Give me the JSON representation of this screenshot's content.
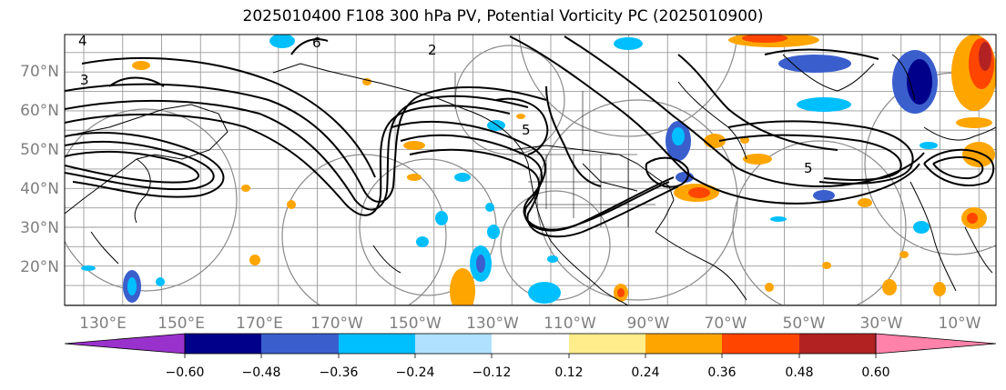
{
  "title": "2025010400 F108 300 hPa PV, Potential Vorticity PC (2025010900)",
  "map": {
    "lat_labels": [
      "70°N",
      "60°N",
      "50°N",
      "40°N",
      "30°N",
      "20°N"
    ],
    "lon_labels": [
      "130°E",
      "150°E",
      "170°E",
      "170°W",
      "150°W",
      "130°W",
      "110°W",
      "90°W",
      "70°W",
      "50°W",
      "30°W",
      "10°W"
    ],
    "contour_labels": [
      "2",
      "3",
      "4",
      "5",
      "6"
    ]
  },
  "colorbar": {
    "ticks": [
      "−0.60",
      "−0.48",
      "−0.36",
      "−0.24",
      "−0.12",
      "0.12",
      "0.24",
      "0.36",
      "0.48",
      "0.60"
    ],
    "colors": [
      "#9932cc",
      "#00008b",
      "#3a5fcd",
      "#00bfff",
      "#b0e2ff",
      "#ffffff",
      "#ffec8b",
      "#ffa500",
      "#ff4500",
      "#b22222",
      "#ff82ab"
    ]
  },
  "shading": {
    "negative_colors": [
      "#3a5fcd",
      "#00bfff",
      "#00008b"
    ],
    "positive_colors": [
      "#ffa500",
      "#ff4500",
      "#b22222"
    ]
  }
}
